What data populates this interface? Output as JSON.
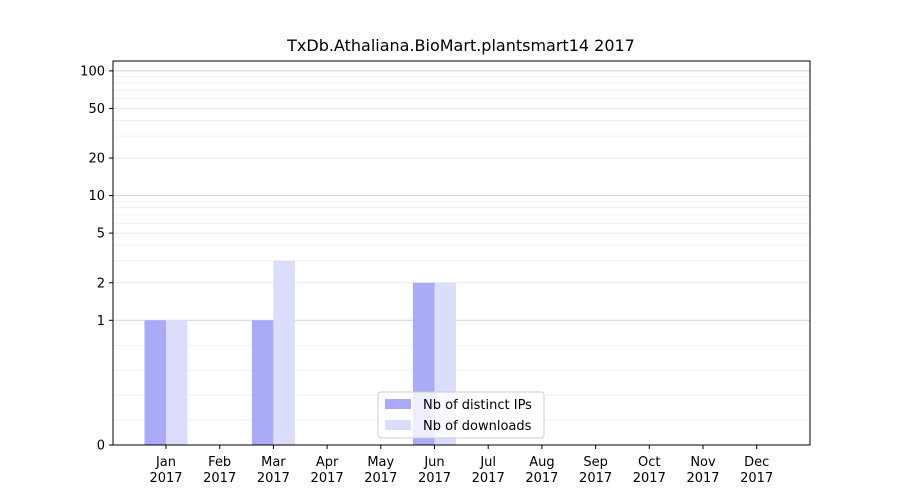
{
  "chart_data": {
    "type": "bar",
    "title": "TxDb.Athaliana.BioMart.plantsmart14 2017",
    "xlabel": "",
    "ylabel": "",
    "y_scale": "symlog",
    "ylim": [
      0,
      120
    ],
    "y_ticks": [
      0,
      1,
      2,
      5,
      10,
      20,
      50,
      100
    ],
    "grid": "horizontal",
    "legend_position": "bottom-center",
    "categories": [
      [
        "Jan",
        "2017"
      ],
      [
        "Feb",
        "2017"
      ],
      [
        "Mar",
        "2017"
      ],
      [
        "Apr",
        "2017"
      ],
      [
        "May",
        "2017"
      ],
      [
        "Jun",
        "2017"
      ],
      [
        "Jul",
        "2017"
      ],
      [
        "Aug",
        "2017"
      ],
      [
        "Sep",
        "2017"
      ],
      [
        "Oct",
        "2017"
      ],
      [
        "Nov",
        "2017"
      ],
      [
        "Dec",
        "2017"
      ]
    ],
    "series": [
      {
        "name": "Nb of distinct IPs",
        "color": "#aaaaf8",
        "values": [
          1,
          0,
          1,
          0,
          0,
          2,
          0,
          0,
          0,
          0,
          0,
          0
        ]
      },
      {
        "name": "Nb of downloads",
        "color": "#dcdcfb",
        "values": [
          1,
          0,
          3,
          0,
          0,
          2,
          0,
          0,
          0,
          0,
          0,
          0
        ]
      }
    ]
  }
}
